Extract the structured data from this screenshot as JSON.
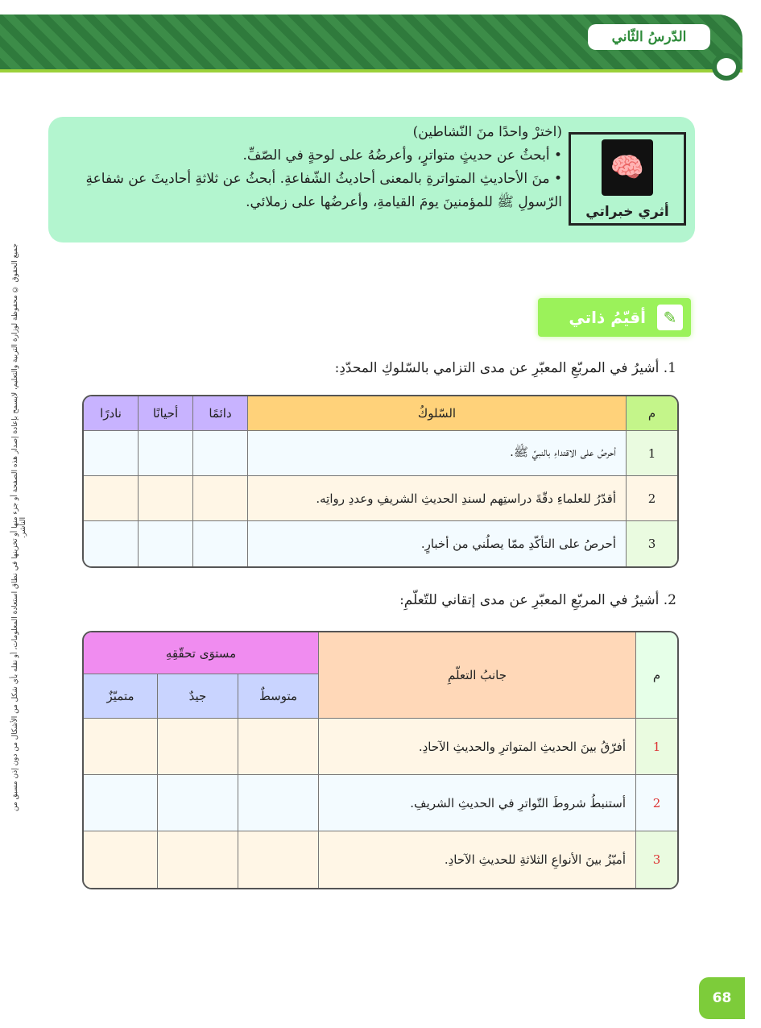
{
  "header": {
    "lesson_label": "الدّرسُ الثّاني"
  },
  "side_note": "جميع الحقوق © محفوظة لوزارة التربية والتعليم، لايسمح بإعادة إصدار هذه الصفحة أو جزء منها أو تخزينها في نطاق استعادة المعلومات، أو نقله بأي شكل من الأشكال من دون إذن مسبق من الناشر.",
  "activity": {
    "title": "أثري خبراتي",
    "icon": "brain-icon",
    "lines": [
      "(اخترْ واحدًا منَ النّشاطين)",
      "أبحثُ عن حديثٍ متواترٍ، وأعرضُهُ على لوحةٍ في الصّفِّ.",
      "منَ الأحاديثِ المتواترةِ بالمعنى أحاديثُ الشّفاعةِ. أبحثُ عن ثلاثةِ أحاديثَ عن شفاعةِ الرّسولِ ﷺ للمؤمنينَ يومَ القيامةِ، وأعرضُها على زملائي."
    ]
  },
  "self_assessment": {
    "title": "أقيّمُ ذاتي",
    "icon": "pencil-checklist-icon"
  },
  "q1": {
    "prompt": "1. أشيرُ في المربّعِ المعبّرِ عن مدى التزامي بالسّلوكِ المحدّدِ:",
    "headers": [
      "م",
      "السّلوكُ",
      "دائمًا",
      "أحيانًا",
      "نادرًا"
    ],
    "rows": [
      {
        "n": "1",
        "text": "أحرصُ على الاقتداءِ بالنبيِّ ﷺ."
      },
      {
        "n": "2",
        "text": "أقدّرُ للعلماءِ دقّةَ دراستِهم لسندِ الحديثِ الشريفِ وعددِ رواتِه."
      },
      {
        "n": "3",
        "text": "أحرصُ على التأكّدِ ممّا يصلُني من أخبارٍ."
      }
    ]
  },
  "q2": {
    "prompt": "2. أشيرُ في المربّعِ المعبّرِ عن مدى إتقاني للتّعلّمِ:",
    "headers": {
      "num": "م",
      "aspect": "جانبُ التعلّمِ",
      "level": "مستوَى تحقّقِهِ",
      "levels": [
        "متوسطٌ",
        "جيدٌ",
        "متميّزٌ"
      ]
    },
    "rows": [
      {
        "n": "1",
        "text": "أفرّقُ بينَ الحديثِ المتواترِ والحديثِ الآحادِ."
      },
      {
        "n": "2",
        "text": "أستنبطُ شروطَ التّواترِ في الحديثِ الشريفِ."
      },
      {
        "n": "3",
        "text": "أميّزُ بينَ الأنواعِ الثلاثةِ للحديثِ الآحادِ."
      }
    ]
  },
  "page_number": "68"
}
